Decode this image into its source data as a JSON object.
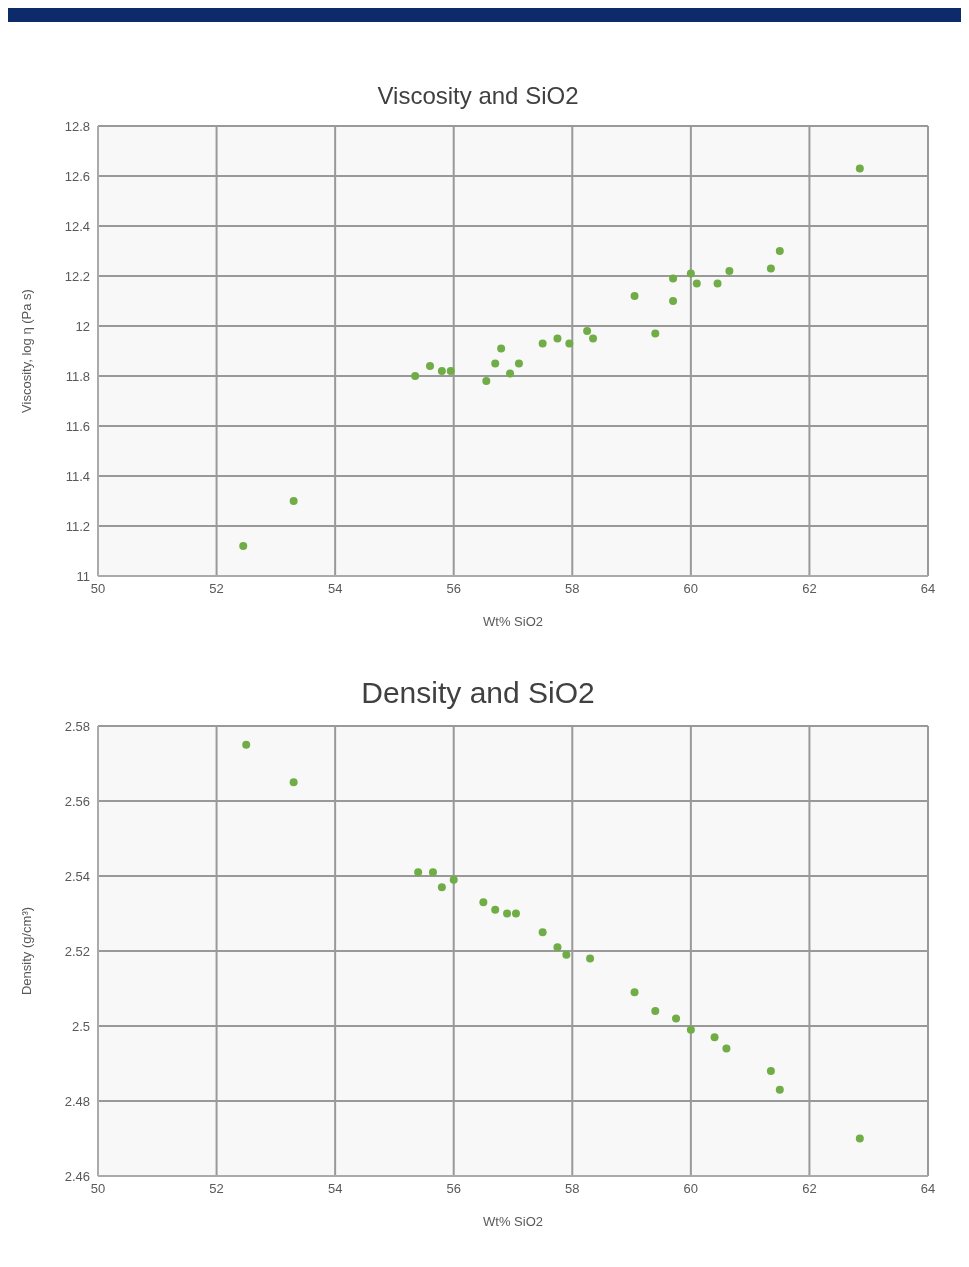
{
  "chart_data": [
    {
      "type": "scatter",
      "title": "Viscosity and SiO2",
      "xlabel": "Wt% SiO2",
      "ylabel": "Viscosity, log η (Pa s)",
      "xlim": [
        50,
        64
      ],
      "xticks": [
        50,
        52,
        54,
        56,
        58,
        60,
        62,
        64
      ],
      "ylim": [
        11,
        12.8
      ],
      "yticks": [
        11,
        11.2,
        11.4,
        11.6,
        11.8,
        12,
        12.2,
        12.4,
        12.6,
        12.8
      ],
      "grid": true,
      "legend": false,
      "marker": "circle",
      "series": [
        {
          "color": "#70ad47",
          "x": [
            52.45,
            53.3,
            55.35,
            55.6,
            55.8,
            55.95,
            56.55,
            56.7,
            56.8,
            56.95,
            57.1,
            57.5,
            57.75,
            57.95,
            58.25,
            58.35,
            59.05,
            59.4,
            59.7,
            59.7,
            60.0,
            60.1,
            60.45,
            60.65,
            61.35,
            61.5,
            62.85
          ],
          "values": [
            11.12,
            11.3,
            11.8,
            11.84,
            11.82,
            11.82,
            11.78,
            11.85,
            11.91,
            11.81,
            11.85,
            11.93,
            11.95,
            11.93,
            11.98,
            11.95,
            12.12,
            11.97,
            12.1,
            12.19,
            12.21,
            12.17,
            12.17,
            12.22,
            12.23,
            12.3,
            12.63
          ]
        }
      ]
    },
    {
      "type": "scatter",
      "title": "Density and SiO2",
      "xlabel": "Wt% SiO2",
      "ylabel": "Density (g/cm³)",
      "xlim": [
        50,
        64
      ],
      "xticks": [
        50,
        52,
        54,
        56,
        58,
        60,
        62,
        64
      ],
      "ylim": [
        2.46,
        2.58
      ],
      "yticks": [
        2.46,
        2.48,
        2.5,
        2.52,
        2.54,
        2.56,
        2.58
      ],
      "grid": true,
      "legend": false,
      "marker": "circle",
      "series": [
        {
          "color": "#70ad47",
          "x": [
            52.5,
            53.3,
            55.4,
            55.65,
            55.8,
            56.0,
            56.5,
            56.7,
            56.9,
            57.05,
            57.5,
            57.75,
            57.9,
            58.3,
            59.05,
            59.4,
            59.75,
            60.0,
            60.4,
            60.6,
            61.35,
            61.5,
            62.85
          ],
          "values": [
            2.575,
            2.565,
            2.541,
            2.541,
            2.537,
            2.539,
            2.533,
            2.531,
            2.53,
            2.53,
            2.525,
            2.521,
            2.519,
            2.518,
            2.509,
            2.504,
            2.502,
            2.499,
            2.497,
            2.494,
            2.488,
            2.483,
            2.47
          ]
        }
      ]
    }
  ]
}
